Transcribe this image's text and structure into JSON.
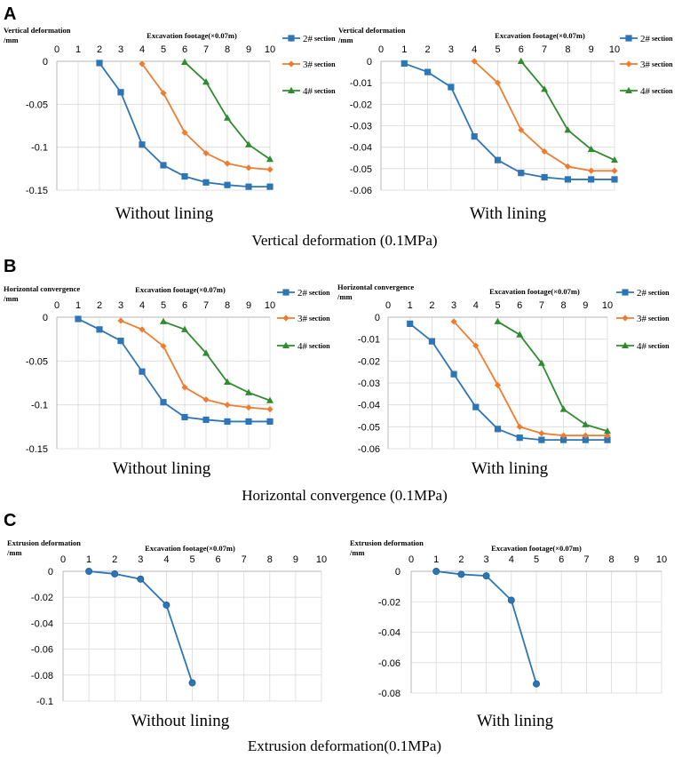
{
  "panels": [
    {
      "letter": "A",
      "row_caption": "Vertical deformation (0.1MPa)",
      "charts": [
        {
          "id": "A-left",
          "type": "line",
          "ylabel": "Vertical deformation\n/mm",
          "xlabel": "Excavation footage(×0.07m)",
          "caption": "Without lining",
          "xlim": [
            0,
            10
          ],
          "ylim": [
            -0.15,
            0
          ],
          "yticks": [
            0,
            -0.05,
            -0.1,
            -0.15
          ],
          "ytick_labels": [
            "0",
            "-0.05",
            "-0.1",
            "-0.15"
          ],
          "series": [
            {
              "name": "2# section",
              "marker": "square",
              "color": "#2e75b6",
              "x": [
                2,
                3,
                4,
                5,
                6,
                7,
                8,
                9,
                10
              ],
              "values": [
                -0.002,
                -0.036,
                -0.097,
                -0.121,
                -0.134,
                -0.141,
                -0.144,
                -0.146,
                -0.146
              ]
            },
            {
              "name": "3# section",
              "marker": "diamond",
              "color": "#ed7d31",
              "x": [
                4,
                5,
                6,
                7,
                8,
                9,
                10
              ],
              "values": [
                -0.003,
                -0.037,
                -0.083,
                -0.107,
                -0.119,
                -0.124,
                -0.126
              ]
            },
            {
              "name": "4# section",
              "marker": "triangle",
              "color": "#2e8b2e",
              "x": [
                6,
                7,
                8,
                9,
                10
              ],
              "values": [
                -0.001,
                -0.024,
                -0.066,
                -0.097,
                -0.114
              ]
            }
          ]
        },
        {
          "id": "A-right",
          "type": "line",
          "ylabel": "Vertical deformation\n/mm",
          "xlabel": "Excavation footage(×0.07m)",
          "caption": "With lining",
          "xlim": [
            0,
            10
          ],
          "ylim": [
            -0.06,
            0
          ],
          "yticks": [
            0,
            -0.01,
            -0.02,
            -0.03,
            -0.04,
            -0.05,
            -0.06
          ],
          "ytick_labels": [
            "0",
            "-0.01",
            "-0.02",
            "-0.03",
            "-0.04",
            "-0.05",
            "-0.06"
          ],
          "series": [
            {
              "name": "2# section",
              "marker": "square",
              "color": "#2e75b6",
              "x": [
                1,
                2,
                3,
                4,
                5,
                6,
                7,
                8,
                9,
                10
              ],
              "values": [
                -0.001,
                -0.005,
                -0.012,
                -0.035,
                -0.046,
                -0.052,
                -0.054,
                -0.055,
                -0.055,
                -0.055
              ]
            },
            {
              "name": "3# section",
              "marker": "diamond",
              "color": "#ed7d31",
              "x": [
                4,
                5,
                6,
                7,
                8,
                9,
                10
              ],
              "values": [
                0,
                -0.01,
                -0.032,
                -0.042,
                -0.049,
                -0.051,
                -0.051
              ]
            },
            {
              "name": "4# section",
              "marker": "triangle",
              "color": "#2e8b2e",
              "x": [
                6,
                7,
                8,
                9,
                10
              ],
              "values": [
                0,
                -0.013,
                -0.032,
                -0.041,
                -0.046
              ]
            }
          ]
        }
      ]
    },
    {
      "letter": "B",
      "row_caption": "Horizontal convergence (0.1MPa)",
      "charts": [
        {
          "id": "B-left",
          "type": "line",
          "ylabel": "Horizontal convergence\n/mm",
          "xlabel": "Excavation footage(×0.07m)",
          "caption": "Without lining",
          "xlim": [
            0,
            10
          ],
          "ylim": [
            -0.15,
            0
          ],
          "yticks": [
            0,
            -0.05,
            -0.1,
            -0.15
          ],
          "ytick_labels": [
            "0",
            "-0.05",
            "-0.1",
            "-0.15"
          ],
          "series": [
            {
              "name": "2# section",
              "marker": "square",
              "color": "#2e75b6",
              "x": [
                1,
                2,
                3,
                4,
                5,
                6,
                7,
                8,
                9,
                10
              ],
              "values": [
                -0.002,
                -0.014,
                -0.027,
                -0.062,
                -0.097,
                -0.114,
                -0.117,
                -0.119,
                -0.119,
                -0.119
              ]
            },
            {
              "name": "3# section",
              "marker": "diamond",
              "color": "#ed7d31",
              "x": [
                3,
                4,
                5,
                6,
                7,
                8,
                9,
                10
              ],
              "values": [
                -0.004,
                -0.014,
                -0.033,
                -0.08,
                -0.094,
                -0.1,
                -0.103,
                -0.105
              ]
            },
            {
              "name": "4# section",
              "marker": "triangle",
              "color": "#2e8b2e",
              "x": [
                5,
                6,
                7,
                8,
                9,
                10
              ],
              "values": [
                -0.005,
                -0.014,
                -0.041,
                -0.074,
                -0.086,
                -0.095
              ]
            }
          ]
        },
        {
          "id": "B-right",
          "type": "line",
          "ylabel": "Horizontal convergence\n/mm",
          "xlabel": "Excavation footage(×0.07m)",
          "caption": "With lining",
          "xlim": [
            0,
            10
          ],
          "ylim": [
            -0.06,
            0
          ],
          "yticks": [
            0,
            -0.01,
            -0.02,
            -0.03,
            -0.04,
            -0.05,
            -0.06
          ],
          "ytick_labels": [
            "0",
            "-0.01",
            "-0.02",
            "-0.03",
            "-0.04",
            "-0.05",
            "-0.06"
          ],
          "series": [
            {
              "name": "2# section",
              "marker": "square",
              "color": "#2e75b6",
              "x": [
                1,
                2,
                3,
                4,
                5,
                6,
                7,
                8,
                9,
                10
              ],
              "values": [
                -0.003,
                -0.011,
                -0.026,
                -0.041,
                -0.051,
                -0.055,
                -0.056,
                -0.056,
                -0.056,
                -0.056
              ]
            },
            {
              "name": "3# section",
              "marker": "diamond",
              "color": "#ed7d31",
              "x": [
                3,
                4,
                5,
                6,
                7,
                8,
                9,
                10
              ],
              "values": [
                -0.002,
                -0.013,
                -0.031,
                -0.05,
                -0.053,
                -0.054,
                -0.054,
                -0.054
              ]
            },
            {
              "name": "4# section",
              "marker": "triangle",
              "color": "#2e8b2e",
              "x": [
                5,
                6,
                7,
                8,
                9,
                10
              ],
              "values": [
                -0.002,
                -0.008,
                -0.021,
                -0.042,
                -0.049,
                -0.052
              ]
            }
          ]
        }
      ]
    },
    {
      "letter": "C",
      "row_caption": "Extrusion deformation(0.1MPa)",
      "charts": [
        {
          "id": "C-left",
          "type": "line",
          "ylabel": "Extrusion deformation\n/mm",
          "xlabel": "Excavation footage(×0.07m)",
          "caption": "Without lining",
          "xlim": [
            0,
            10
          ],
          "ylim": [
            -0.1,
            0
          ],
          "yticks": [
            0,
            -0.02,
            -0.04,
            -0.06,
            -0.08,
            -0.1
          ],
          "ytick_labels": [
            "0",
            "-0.02",
            "-0.04",
            "-0.06",
            "-0.08",
            "-0.1"
          ],
          "series": [
            {
              "name": "",
              "marker": "circle",
              "color": "#2e75b6",
              "x": [
                1,
                2,
                3,
                4,
                5
              ],
              "values": [
                0,
                -0.002,
                -0.006,
                -0.026,
                -0.086
              ]
            }
          ]
        },
        {
          "id": "C-right",
          "type": "line",
          "ylabel": "Extrusion deformation\n/mm",
          "xlabel": "Excavation footage(×0.07m)",
          "caption": "With lining",
          "xlim": [
            0,
            10
          ],
          "ylim": [
            -0.08,
            0
          ],
          "yticks": [
            0,
            -0.02,
            -0.04,
            -0.06,
            -0.08
          ],
          "ytick_labels": [
            "0",
            "-0.02",
            "-0.04",
            "-0.06",
            "-0.08"
          ],
          "series": [
            {
              "name": "",
              "marker": "circle",
              "color": "#2e75b6",
              "x": [
                1,
                2,
                3,
                4,
                5
              ],
              "values": [
                0,
                -0.002,
                -0.003,
                -0.019,
                -0.074
              ]
            }
          ]
        }
      ]
    }
  ]
}
